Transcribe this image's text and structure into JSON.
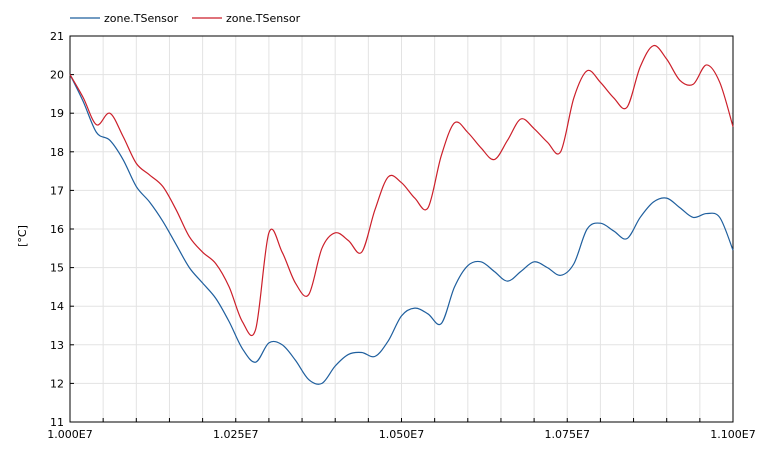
{
  "chart_data": {
    "type": "line",
    "title": "",
    "xlabel": "",
    "ylabel": "[°C]",
    "xlim": [
      10000000,
      11000000
    ],
    "ylim": [
      11,
      21
    ],
    "x_ticks": [
      10000000,
      10250000,
      10500000,
      10750000,
      11000000
    ],
    "x_tick_labels": [
      "1.000E7",
      "1.025E7",
      "1.050E7",
      "1.075E7",
      "1.100E7"
    ],
    "y_ticks": [
      11,
      12,
      13,
      14,
      15,
      16,
      17,
      18,
      19,
      20,
      21
    ],
    "grid": true,
    "legend_position": "top-left",
    "series": [
      {
        "name": "zone.TSensor",
        "color": "#1f5f9e",
        "x": [
          10000000,
          10020000,
          10040000,
          10060000,
          10080000,
          10100000,
          10120000,
          10140000,
          10160000,
          10180000,
          10200000,
          10220000,
          10240000,
          10260000,
          10280000,
          10300000,
          10320000,
          10340000,
          10360000,
          10380000,
          10400000,
          10420000,
          10440000,
          10460000,
          10480000,
          10500000,
          10520000,
          10540000,
          10560000,
          10580000,
          10600000,
          10620000,
          10640000,
          10660000,
          10680000,
          10700000,
          10720000,
          10740000,
          10760000,
          10780000,
          10800000,
          10820000,
          10840000,
          10860000,
          10880000,
          10900000,
          10920000,
          10940000,
          10960000,
          10980000,
          11000000
        ],
        "y": [
          20.0,
          19.3,
          18.5,
          18.3,
          17.8,
          17.1,
          16.7,
          16.2,
          15.6,
          15.0,
          14.6,
          14.2,
          13.6,
          12.9,
          12.55,
          13.05,
          13.0,
          12.6,
          12.1,
          12.0,
          12.45,
          12.75,
          12.8,
          12.7,
          13.1,
          13.75,
          13.95,
          13.8,
          13.55,
          14.5,
          15.05,
          15.15,
          14.9,
          14.65,
          14.9,
          15.15,
          15.0,
          14.8,
          15.1,
          16.0,
          16.15,
          15.95,
          15.75,
          16.3,
          16.7,
          16.8,
          16.55,
          16.3,
          16.4,
          16.3,
          15.45
        ]
      },
      {
        "name": "zone.TSensor",
        "color": "#cc1f2a",
        "x": [
          10000000,
          10020000,
          10040000,
          10060000,
          10080000,
          10100000,
          10120000,
          10140000,
          10160000,
          10180000,
          10200000,
          10220000,
          10240000,
          10260000,
          10280000,
          10300000,
          10320000,
          10340000,
          10360000,
          10380000,
          10400000,
          10420000,
          10440000,
          10460000,
          10480000,
          10500000,
          10520000,
          10540000,
          10560000,
          10580000,
          10600000,
          10620000,
          10640000,
          10660000,
          10680000,
          10700000,
          10720000,
          10740000,
          10760000,
          10780000,
          10800000,
          10820000,
          10840000,
          10860000,
          10880000,
          10900000,
          10920000,
          10940000,
          10960000,
          10980000,
          11000000
        ],
        "y": [
          20.0,
          19.4,
          18.7,
          19.0,
          18.4,
          17.7,
          17.4,
          17.1,
          16.5,
          15.8,
          15.4,
          15.1,
          14.5,
          13.6,
          13.4,
          15.9,
          15.4,
          14.6,
          14.3,
          15.5,
          15.9,
          15.7,
          15.4,
          16.5,
          17.35,
          17.2,
          16.8,
          16.55,
          17.9,
          18.75,
          18.5,
          18.1,
          17.8,
          18.3,
          18.85,
          18.6,
          18.25,
          18.0,
          19.4,
          20.1,
          19.8,
          19.4,
          19.15,
          20.2,
          20.75,
          20.4,
          19.85,
          19.75,
          20.25,
          19.8,
          18.65
        ]
      }
    ]
  }
}
